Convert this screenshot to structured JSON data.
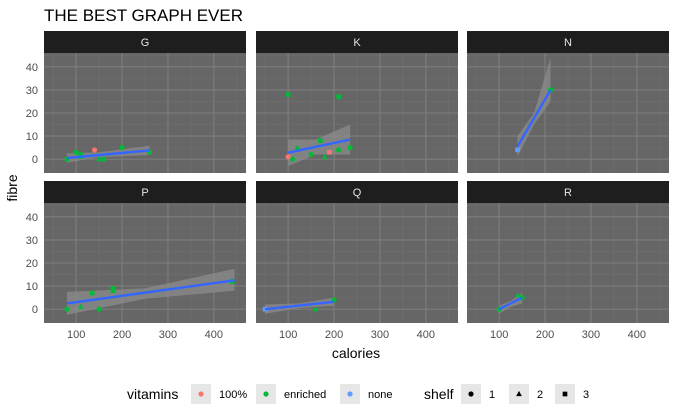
{
  "colors": {
    "panel_bg": "#666666",
    "strip_bg": "#1e1e1e",
    "strip_text": "#e6e6e6",
    "grid_major": "#7d7d7d",
    "grid_minor": "#717171",
    "fit_line": "#3366ff",
    "ribbon": "#8c8c8c",
    "axis_text": "#4d4d4d"
  },
  "chart_data": {
    "type": "scatter",
    "title": "THE BEST GRAPH EVER",
    "xlabel": "calories",
    "ylabel": "fibre",
    "xlim": [
      30,
      470
    ],
    "ylim": [
      -6,
      46
    ],
    "x_ticks": [
      100,
      200,
      300,
      400
    ],
    "y_ticks": [
      0,
      10,
      20,
      30,
      40
    ],
    "grid": true,
    "smooth": "lm",
    "facet_by": "first letter of manufacturer",
    "legend_position": "bottom",
    "legends": [
      {
        "title": "vitamins",
        "kind": "color",
        "entries": [
          {
            "label": "100%",
            "color": "#f8766d"
          },
          {
            "label": "enriched",
            "color": "#00ba38"
          },
          {
            "label": "none",
            "color": "#619cff"
          }
        ]
      },
      {
        "title": "shelf",
        "kind": "shape",
        "entries": [
          {
            "label": "1",
            "shape": "circle"
          },
          {
            "label": "2",
            "shape": "triangle"
          },
          {
            "label": "3",
            "shape": "square"
          }
        ]
      }
    ],
    "panels": [
      {
        "label": "G",
        "fit": [
          [
            80,
            0.5
          ],
          [
            260,
            3.8
          ]
        ],
        "band": [
          [
            80,
            -1.5,
            2.5
          ],
          [
            150,
            0.8,
            3.0
          ],
          [
            260,
            1.8,
            5.8
          ]
        ],
        "points": [
          {
            "x": 80,
            "y": 0,
            "vitamins": "enriched",
            "shelf": 3
          },
          {
            "x": 100,
            "y": 3,
            "vitamins": "enriched",
            "shelf": 1
          },
          {
            "x": 110,
            "y": 1,
            "vitamins": "enriched",
            "shelf": 2
          },
          {
            "x": 110,
            "y": 2,
            "vitamins": "enriched",
            "shelf": 1
          },
          {
            "x": 140,
            "y": 4,
            "vitamins": "100%",
            "shelf": 1
          },
          {
            "x": 150,
            "y": 0,
            "vitamins": "enriched",
            "shelf": 2
          },
          {
            "x": 160,
            "y": 0,
            "vitamins": "enriched",
            "shelf": 1
          },
          {
            "x": 200,
            "y": 5,
            "vitamins": "enriched",
            "shelf": 1
          },
          {
            "x": 260,
            "y": 3,
            "vitamins": "enriched",
            "shelf": 3
          }
        ]
      },
      {
        "label": "K",
        "fit": [
          [
            100,
            2.8
          ],
          [
            235,
            8.5
          ]
        ],
        "band": [
          [
            100,
            -3.0,
            8.5
          ],
          [
            160,
            2.0,
            8.5
          ],
          [
            235,
            2.0,
            15.0
          ]
        ],
        "points": [
          {
            "x": 100,
            "y": 1,
            "vitamins": "100%",
            "shelf": 1
          },
          {
            "x": 100,
            "y": 28,
            "vitamins": "enriched",
            "shelf": 3
          },
          {
            "x": 110,
            "y": 0,
            "vitamins": "enriched",
            "shelf": 1
          },
          {
            "x": 120,
            "y": 5,
            "vitamins": "enriched",
            "shelf": 2
          },
          {
            "x": 150,
            "y": 2,
            "vitamins": "enriched",
            "shelf": 1
          },
          {
            "x": 170,
            "y": 8,
            "vitamins": "enriched",
            "shelf": 3
          },
          {
            "x": 180,
            "y": 1,
            "vitamins": "enriched",
            "shelf": 2
          },
          {
            "x": 190,
            "y": 3,
            "vitamins": "100%",
            "shelf": 3
          },
          {
            "x": 210,
            "y": 27,
            "vitamins": "enriched",
            "shelf": 3
          },
          {
            "x": 210,
            "y": 4,
            "vitamins": "enriched",
            "shelf": 1
          },
          {
            "x": 235,
            "y": 5,
            "vitamins": "enriched",
            "shelf": 3
          }
        ]
      },
      {
        "label": "N",
        "fit": [
          [
            140,
            5.5
          ],
          [
            212,
            30
          ]
        ],
        "band": [
          [
            140,
            1.0,
            10.0
          ],
          [
            176,
            15.0,
            20.0
          ],
          [
            212,
            25.0,
            44.0
          ]
        ],
        "points": [
          {
            "x": 140,
            "y": 4,
            "vitamins": "none",
            "shelf": 3
          },
          {
            "x": 212,
            "y": 30,
            "vitamins": "enriched",
            "shelf": 3
          }
        ]
      },
      {
        "label": "P",
        "fit": [
          [
            80,
            2.5
          ],
          [
            445,
            12.5
          ]
        ],
        "band": [
          [
            80,
            -2.5,
            7.5
          ],
          [
            250,
            4.5,
            9.0
          ],
          [
            445,
            8.0,
            17.5
          ]
        ],
        "points": [
          {
            "x": 80,
            "y": 0,
            "vitamins": "enriched",
            "shelf": 1
          },
          {
            "x": 110,
            "y": 1,
            "vitamins": "enriched",
            "shelf": 2
          },
          {
            "x": 135,
            "y": 7,
            "vitamins": "enriched",
            "shelf": 3
          },
          {
            "x": 150,
            "y": 0,
            "vitamins": "enriched",
            "shelf": 1
          },
          {
            "x": 180,
            "y": 8,
            "vitamins": "enriched",
            "shelf": 3
          },
          {
            "x": 180,
            "y": 9,
            "vitamins": "enriched",
            "shelf": 3
          },
          {
            "x": 440,
            "y": 12,
            "vitamins": "enriched",
            "shelf": 3
          }
        ]
      },
      {
        "label": "Q",
        "fit": [
          [
            50,
            0
          ],
          [
            200,
            3.2
          ]
        ],
        "band": [
          [
            50,
            -2.0,
            2.0
          ],
          [
            125,
            0.5,
            2.5
          ],
          [
            200,
            1.5,
            5.0
          ]
        ],
        "points": [
          {
            "x": 50,
            "y": 0,
            "vitamins": "none",
            "shelf": 3
          },
          {
            "x": 160,
            "y": 0,
            "vitamins": "enriched",
            "shelf": 2
          },
          {
            "x": 200,
            "y": 4,
            "vitamins": "enriched",
            "shelf": 1
          }
        ]
      },
      {
        "label": "R",
        "fit": [
          [
            100,
            0
          ],
          [
            150,
            5
          ]
        ],
        "band": [
          [
            100,
            -2.0,
            1.5
          ],
          [
            125,
            1.0,
            3.5
          ],
          [
            150,
            2.5,
            7.0
          ]
        ],
        "points": [
          {
            "x": 100,
            "y": 0,
            "vitamins": "enriched",
            "shelf": 3
          },
          {
            "x": 140,
            "y": 6,
            "vitamins": "enriched",
            "shelf": 2
          },
          {
            "x": 150,
            "y": 5,
            "vitamins": "enriched",
            "shelf": 3
          }
        ]
      }
    ]
  }
}
